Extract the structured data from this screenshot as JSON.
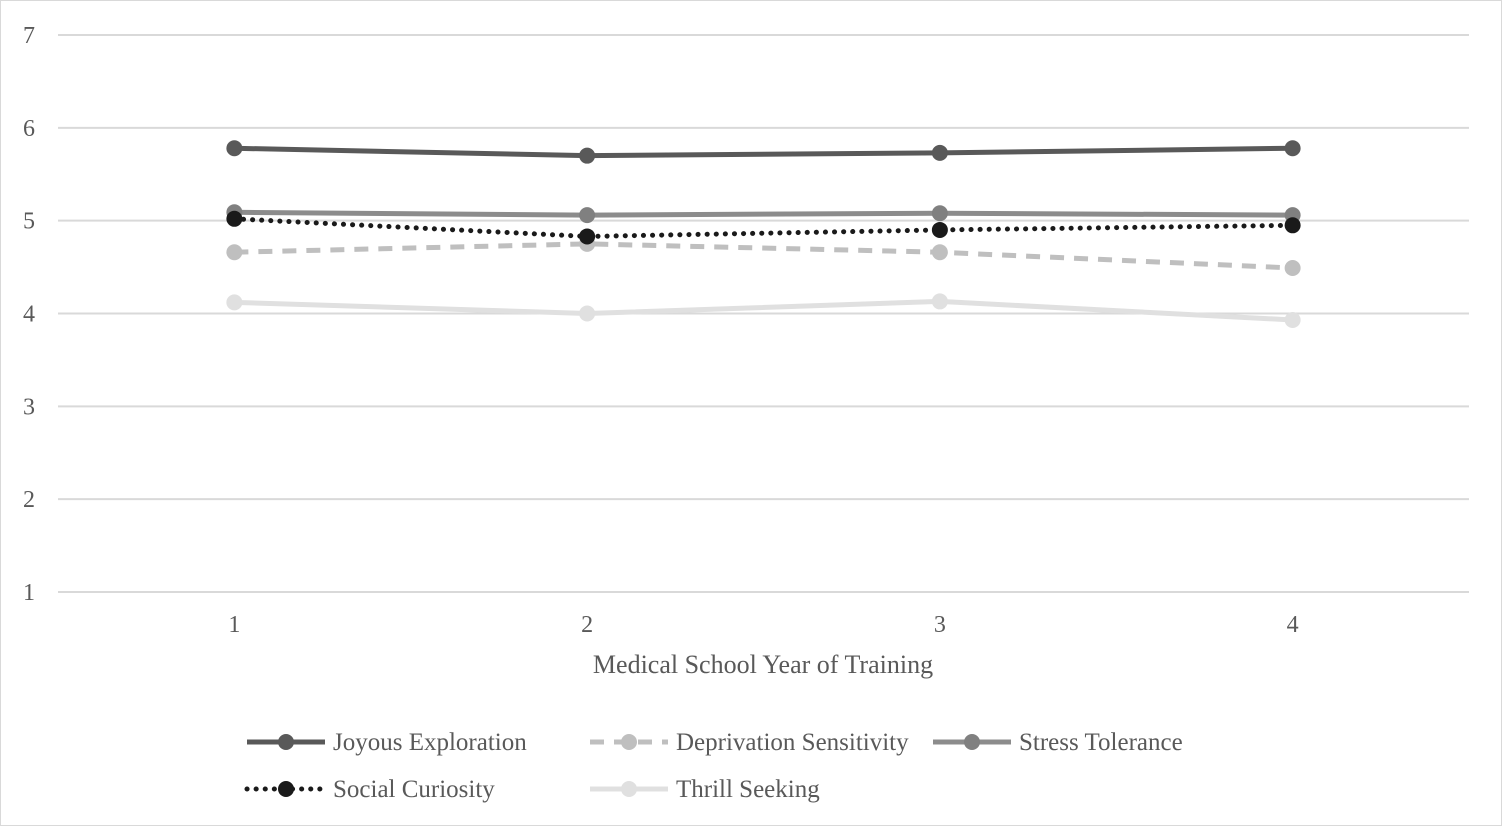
{
  "chart_data": {
    "type": "line",
    "title": "",
    "xlabel": "Medical School Year of Training",
    "ylabel": "",
    "categories": [
      "1",
      "2",
      "3",
      "4"
    ],
    "ylim": [
      1,
      7
    ],
    "yticks": [
      1,
      2,
      3,
      4,
      5,
      6,
      7
    ],
    "grid": true,
    "legend_position": "bottom",
    "series": [
      {
        "name": "Joyous Exploration",
        "values": [
          5.78,
          5.7,
          5.73,
          5.78
        ],
        "color": "#595959",
        "dash": "solid",
        "marker_color": "#595959"
      },
      {
        "name": "Deprivation Sensitivity",
        "values": [
          4.66,
          4.75,
          4.66,
          4.49
        ],
        "color": "#bfbfbf",
        "dash": "dashed",
        "marker_color": "#bfbfbf"
      },
      {
        "name": "Stress Tolerance",
        "values": [
          5.09,
          5.06,
          5.08,
          5.06
        ],
        "color": "#8c8c8c",
        "dash": "solid",
        "marker_color": "#808080"
      },
      {
        "name": "Social Curiosity",
        "values": [
          5.02,
          4.83,
          4.9,
          4.95
        ],
        "color": "#1a1a1a",
        "dash": "dotted",
        "marker_color": "#1a1a1a"
      },
      {
        "name": "Thrill Seeking",
        "values": [
          4.12,
          4.0,
          4.13,
          3.93
        ],
        "color": "#e0e0e0",
        "dash": "solid",
        "marker_color": "#e0e0e0"
      }
    ]
  }
}
